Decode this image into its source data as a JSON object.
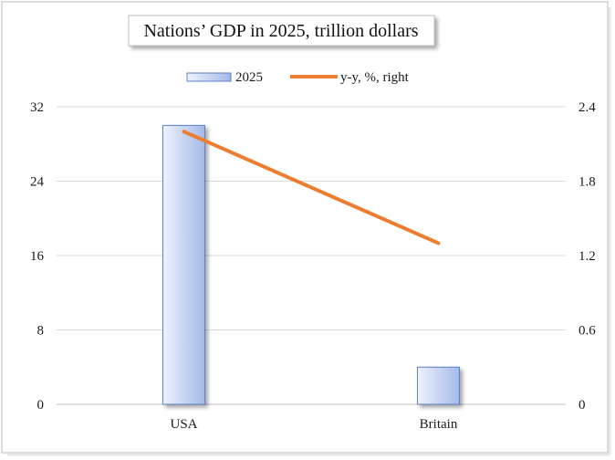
{
  "chart_data": {
    "type": "bar+line",
    "title": "Nations’ GDP in 2025, trillion dollars",
    "categories": [
      "USA",
      "Britain"
    ],
    "series": [
      {
        "name": "2025",
        "type": "bar",
        "axis": "left",
        "values": [
          30.0,
          4.0
        ]
      },
      {
        "name": "y-y, %, right",
        "type": "line",
        "axis": "right",
        "values": [
          2.2,
          1.3
        ]
      }
    ],
    "y_left": {
      "min": 0,
      "max": 32,
      "ticks": [
        "0",
        "8",
        "16",
        "24",
        "32"
      ]
    },
    "y_right": {
      "min": 0,
      "max": 2.4,
      "ticks": [
        "0",
        "0.6",
        "1.2",
        "1.8",
        "2.4"
      ]
    },
    "grid": true,
    "legend_position": "top",
    "colors": {
      "bar_light": "#e9eefb",
      "bar_dark": "#9fb6e6",
      "bar_border": "#5b7fc7",
      "line": "#ed7d31",
      "grid": "#d9d9d9"
    }
  }
}
